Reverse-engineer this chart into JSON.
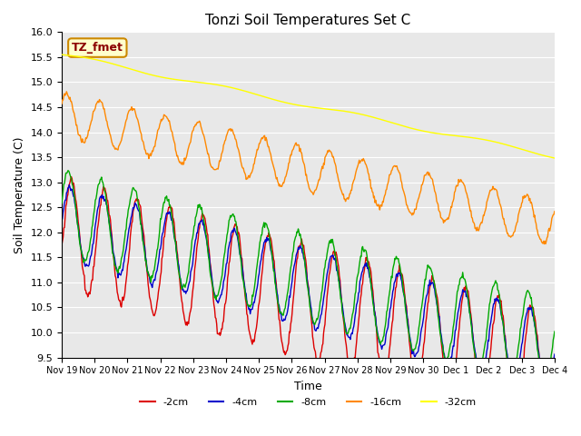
{
  "title": "Tonzi Soil Temperatures Set C",
  "xlabel": "Time",
  "ylabel": "Soil Temperature (C)",
  "ylim": [
    9.5,
    16.0
  ],
  "yticks": [
    9.5,
    10.0,
    10.5,
    11.0,
    11.5,
    12.0,
    12.5,
    13.0,
    13.5,
    14.0,
    14.5,
    15.0,
    15.5,
    16.0
  ],
  "annotation": "TZ_fmet",
  "annotation_color": "#8B0000",
  "annotation_bg": "#FFFFCC",
  "annotation_border": "#CC8800",
  "bg_color": "#E8E8E8",
  "lines": {
    "-2cm": {
      "color": "#DD0000",
      "lw": 1.0
    },
    "-4cm": {
      "color": "#0000CC",
      "lw": 1.0
    },
    "-8cm": {
      "color": "#00AA00",
      "lw": 1.0
    },
    "-16cm": {
      "color": "#FF8800",
      "lw": 1.0
    },
    "-32cm": {
      "color": "#FFFF00",
      "lw": 1.0
    }
  },
  "legend_colors": {
    "-2cm": "#DD0000",
    "-4cm": "#0000CC",
    "-8cm": "#00AA00",
    "-16cm": "#FF8800",
    "-32cm": "#FFFF00"
  },
  "xtick_labels": [
    "Nov 19",
    "Nov 20",
    "Nov 21",
    "Nov 22",
    "Nov 23",
    "Nov 24",
    "Nov 25",
    "Nov 26",
    "Nov 27",
    "Nov 28",
    "Nov 29",
    "Nov 30",
    "Dec 1",
    "Dec 2",
    "Dec 3",
    "Dec 4"
  ],
  "n_points": 720
}
